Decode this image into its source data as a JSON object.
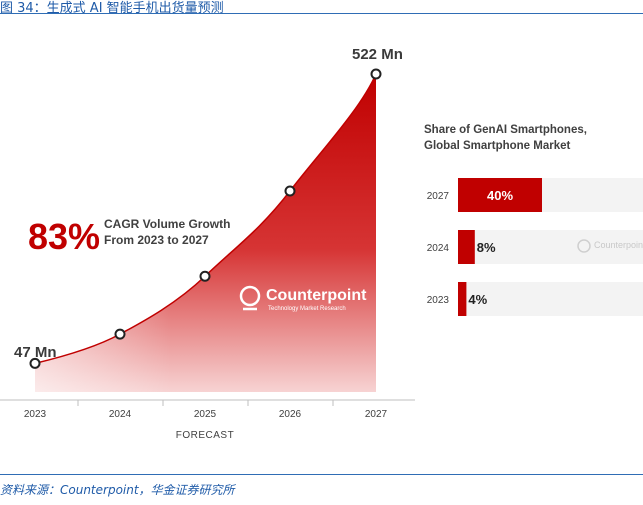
{
  "figure_caption": "图 34：生成式 AI 智能手机出货量预测",
  "source_note": "资料来源：Counterpoint，华金证券研究所",
  "watermark": "Counterpoint",
  "watermark_sub": "Technology Market Research",
  "colors": {
    "accent": "#c00000",
    "caption": "#1f5ba8",
    "bar_bg": "#f3f3f3"
  },
  "chart_data": [
    {
      "type": "area",
      "x": [
        "2023",
        "2024",
        "2025",
        "2026",
        "2027"
      ],
      "series": [
        {
          "values": [
            47,
            95,
            190,
            330,
            522
          ]
        }
      ],
      "xlabel": "FORECAST",
      "point_labels": [
        {
          "x": "2023",
          "text": "47 Mn"
        },
        {
          "x": "2027",
          "text": "522 Mn"
        }
      ],
      "annotation": {
        "big": "83%",
        "line1": "CAGR Volume Growth",
        "line2": "From 2023 to 2027"
      },
      "ylim": [
        0,
        560
      ],
      "grid": false
    },
    {
      "type": "bar",
      "orientation": "horizontal",
      "title_line1": "Share of GenAI Smartphones,",
      "title_line2": "Global Smartphone Market",
      "categories": [
        "2027",
        "2024",
        "2023"
      ],
      "values": [
        40,
        8,
        4
      ],
      "value_labels": [
        "40%",
        "8%",
        "4%"
      ],
      "xlim": [
        0,
        100
      ]
    }
  ]
}
